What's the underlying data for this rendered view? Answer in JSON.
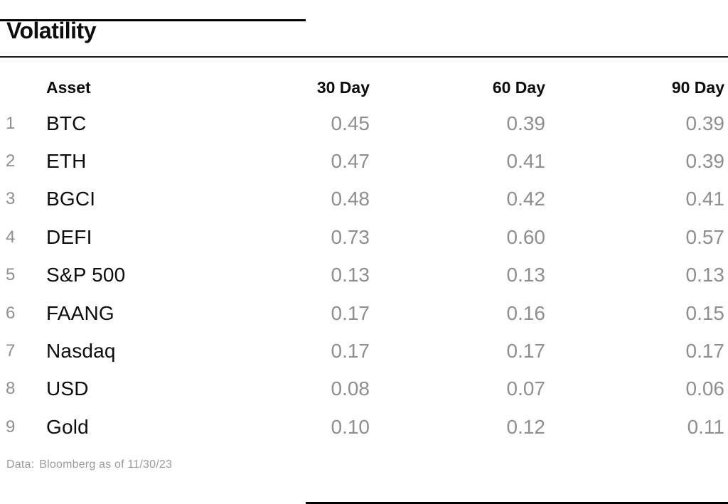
{
  "page": {
    "title": "Volatility",
    "footer": {
      "label": "Data:",
      "value": "Bloomberg as of 11/30/23"
    }
  },
  "colors": {
    "text": "#0d0d0d",
    "muted_value": "#8f8f8f",
    "footer_text": "#9b9b9b",
    "rule": "#1a1a1a",
    "edge_rule": "#000000",
    "background": "#ffffff"
  },
  "table": {
    "columns": [
      "Asset",
      "30 Day",
      "60 Day",
      "90 Day"
    ],
    "rows": [
      {
        "index": "1",
        "asset": "BTC",
        "d30": "0.45",
        "d60": "0.39",
        "d90": "0.39"
      },
      {
        "index": "2",
        "asset": "ETH",
        "d30": "0.47",
        "d60": "0.41",
        "d90": "0.39"
      },
      {
        "index": "3",
        "asset": "BGCI",
        "d30": "0.48",
        "d60": "0.42",
        "d90": "0.41"
      },
      {
        "index": "4",
        "asset": "DEFI",
        "d30": "0.73",
        "d60": "0.60",
        "d90": "0.57"
      },
      {
        "index": "5",
        "asset": "S&P 500",
        "d30": "0.13",
        "d60": "0.13",
        "d90": "0.13"
      },
      {
        "index": "6",
        "asset": "FAANG",
        "d30": "0.17",
        "d60": "0.16",
        "d90": "0.15"
      },
      {
        "index": "7",
        "asset": "Nasdaq",
        "d30": "0.17",
        "d60": "0.17",
        "d90": "0.17"
      },
      {
        "index": "8",
        "asset": "USD",
        "d30": "0.08",
        "d60": "0.07",
        "d90": "0.06"
      },
      {
        "index": "9",
        "asset": "Gold",
        "d30": "0.10",
        "d60": "0.12",
        "d90": "0.11"
      }
    ]
  },
  "chart_data": {
    "type": "table",
    "title": "Volatility",
    "columns": [
      "Asset",
      "30 Day",
      "60 Day",
      "90 Day"
    ],
    "categories": [
      "BTC",
      "ETH",
      "BGCI",
      "DEFI",
      "S&P 500",
      "FAANG",
      "Nasdaq",
      "USD",
      "Gold"
    ],
    "series": [
      {
        "name": "30 Day",
        "values": [
          0.45,
          0.47,
          0.48,
          0.73,
          0.13,
          0.17,
          0.17,
          0.08,
          0.1
        ]
      },
      {
        "name": "60 Day",
        "values": [
          0.39,
          0.41,
          0.42,
          0.6,
          0.13,
          0.16,
          0.17,
          0.07,
          0.12
        ]
      },
      {
        "name": "90 Day",
        "values": [
          0.39,
          0.39,
          0.41,
          0.57,
          0.13,
          0.15,
          0.17,
          0.06,
          0.11
        ]
      }
    ],
    "annotations": [
      "Data: Bloomberg as of 11/30/23"
    ]
  }
}
